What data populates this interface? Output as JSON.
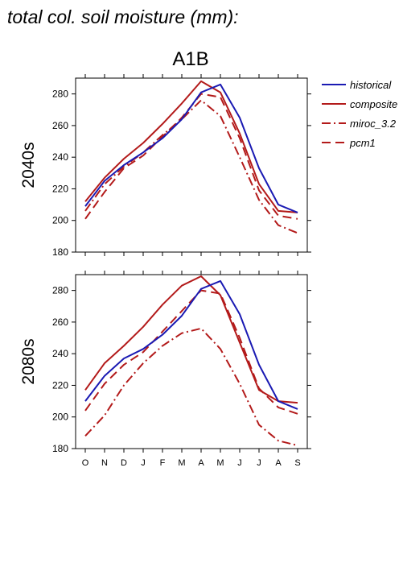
{
  "figure_title": "total col. soil moisture (mm):",
  "chart_data": {
    "type": "line",
    "title": "A1B",
    "x": [
      "O",
      "N",
      "D",
      "J",
      "F",
      "M",
      "A",
      "M",
      "J",
      "J",
      "A",
      "S"
    ],
    "ylim": [
      180,
      290
    ],
    "yticks": [
      180,
      200,
      220,
      240,
      260,
      280
    ],
    "grid": false,
    "legend_position": "top-right, outside plot",
    "legend": [
      {
        "name": "historical",
        "color": "#1a1ab3",
        "dash": "solid"
      },
      {
        "name": "composite",
        "color": "#b31a1a",
        "dash": "solid"
      },
      {
        "name": "miroc_3.2",
        "color": "#b31a1a",
        "dash": "dashdot"
      },
      {
        "name": "pcm1",
        "color": "#b31a1a",
        "dash": "dashed"
      }
    ],
    "panels": [
      {
        "label": "2040s",
        "series": [
          {
            "name": "historical",
            "values": [
              209,
              225,
              235,
              243,
              252,
              264,
              281,
              286,
              265,
              233,
              210,
              205
            ]
          },
          {
            "name": "composite",
            "values": [
              212,
              227,
              239,
              249,
              261,
              274,
              288,
              281,
              255,
              223,
              206,
              205
            ]
          },
          {
            "name": "miroc_3.2",
            "values": [
              206,
              223,
              234,
              243,
              254,
              264,
              276,
              266,
              240,
              213,
              197,
              192
            ]
          },
          {
            "name": "pcm1",
            "values": [
              201,
              218,
              233,
              241,
              253,
              265,
              280,
              278,
              252,
              219,
              203,
              201
            ]
          }
        ]
      },
      {
        "label": "2080s",
        "series": [
          {
            "name": "historical",
            "values": [
              210,
              226,
              237,
              243,
              252,
              264,
              281,
              286,
              265,
              233,
              210,
              205
            ]
          },
          {
            "name": "composite",
            "values": [
              217,
              234,
              245,
              257,
              271,
              283,
              289,
              277,
              247,
              217,
              210,
              209
            ]
          },
          {
            "name": "miroc_3.2",
            "values": [
              188,
              201,
              220,
              234,
              245,
              253,
              256,
              243,
              221,
              195,
              185,
              182
            ]
          },
          {
            "name": "pcm1",
            "values": [
              204,
              221,
              233,
              241,
              254,
              267,
              280,
              278,
              250,
              218,
              206,
              202
            ]
          }
        ]
      }
    ]
  }
}
